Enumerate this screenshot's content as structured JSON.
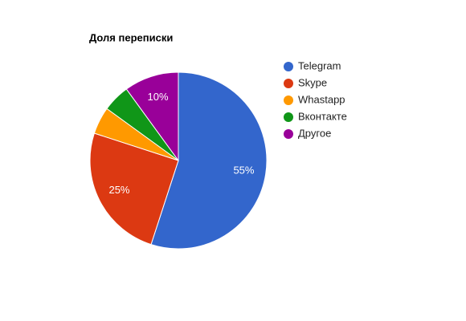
{
  "chart_data": {
    "type": "pie",
    "title": "Доля переписки",
    "categories": [
      "Telegram",
      "Skype",
      "Whastapp",
      "Вконтакте",
      "Другое"
    ],
    "values": [
      55,
      25,
      5,
      5,
      10
    ],
    "value_labels": [
      "55%",
      "25%",
      null,
      null,
      "10%"
    ],
    "colors": [
      "#3366cc",
      "#dc3912",
      "#ff9900",
      "#109618",
      "#990099"
    ],
    "legend": "right"
  }
}
